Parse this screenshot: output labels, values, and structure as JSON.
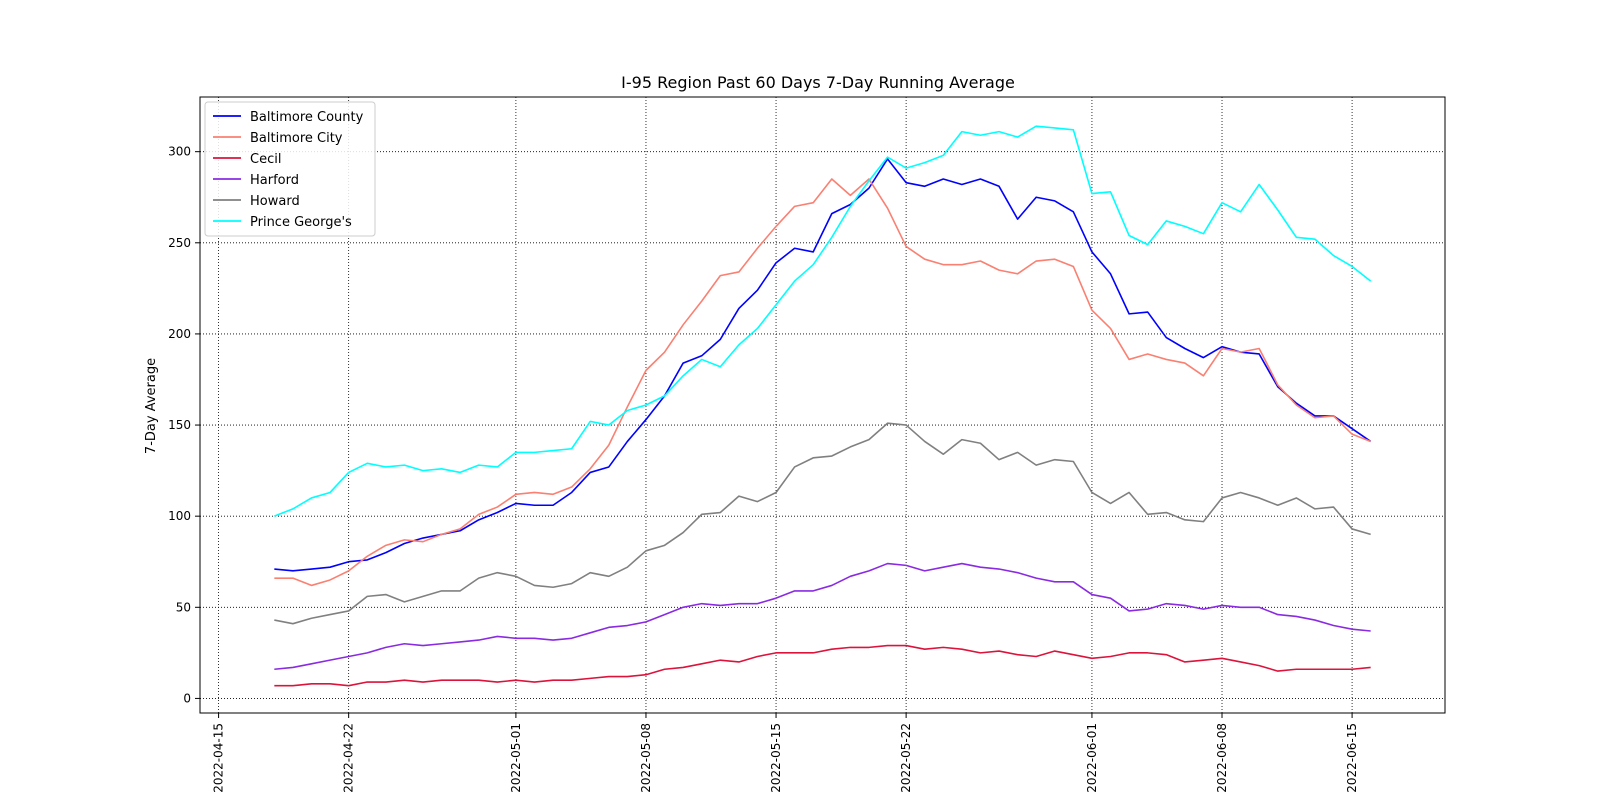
{
  "chart_data": {
    "type": "line",
    "title": "I-95 Region Past 60 Days 7-Day Running Average",
    "xlabel": "",
    "ylabel": "7-Day Average",
    "x_start": "2022-04-18",
    "x_end": "2022-06-16",
    "xlim": [
      "2022-04-14",
      "2022-06-20"
    ],
    "ylim": [
      -8,
      330
    ],
    "x_ticks": [
      "2022-04-15",
      "2022-04-22",
      "2022-05-01",
      "2022-05-08",
      "2022-05-15",
      "2022-05-22",
      "2022-06-01",
      "2022-06-08",
      "2022-06-15"
    ],
    "y_ticks": [
      0,
      50,
      100,
      150,
      200,
      250,
      300
    ],
    "grid": true,
    "legend_position": "top-left",
    "series": [
      {
        "name": "Baltimore County",
        "color": "#0000ff",
        "values": [
          71,
          70,
          71,
          72,
          75,
          76,
          80,
          85,
          88,
          90,
          92,
          98,
          102,
          107,
          106,
          106,
          113,
          124,
          127,
          141,
          153,
          166,
          184,
          188,
          197,
          214,
          224,
          239,
          247,
          245,
          266,
          271,
          280,
          296,
          283,
          281,
          285,
          282,
          285,
          281,
          263,
          275,
          273,
          267,
          245,
          233,
          211,
          212,
          198,
          192,
          187,
          193,
          190,
          189,
          171,
          162,
          155,
          155,
          148,
          141
        ]
      },
      {
        "name": "Baltimore City",
        "color": "#fa8072",
        "values": [
          66,
          66,
          62,
          65,
          70,
          78,
          84,
          87,
          86,
          90,
          93,
          101,
          105,
          112,
          113,
          112,
          116,
          126,
          139,
          160,
          180,
          190,
          205,
          218,
          232,
          234,
          247,
          259,
          270,
          272,
          285,
          276,
          285,
          269,
          248,
          241,
          238,
          238,
          240,
          235,
          233,
          240,
          241,
          237,
          213,
          203,
          186,
          189,
          186,
          184,
          177,
          192,
          190,
          192,
          172,
          161,
          154,
          155,
          145,
          141
        ]
      },
      {
        "name": "Cecil",
        "color": "#dc143c",
        "values": [
          7,
          7,
          8,
          8,
          7,
          9,
          9,
          10,
          9,
          10,
          10,
          10,
          9,
          10,
          9,
          10,
          10,
          11,
          12,
          12,
          13,
          16,
          17,
          19,
          21,
          20,
          23,
          25,
          25,
          25,
          27,
          28,
          28,
          29,
          29,
          27,
          28,
          27,
          25,
          26,
          24,
          23,
          26,
          24,
          22,
          23,
          25,
          25,
          24,
          20,
          21,
          22,
          20,
          18,
          15,
          16,
          16,
          16,
          16,
          17
        ]
      },
      {
        "name": "Harford",
        "color": "#8a2be2",
        "values": [
          16,
          17,
          19,
          21,
          23,
          25,
          28,
          30,
          29,
          30,
          31,
          32,
          34,
          33,
          33,
          32,
          33,
          36,
          39,
          40,
          42,
          46,
          50,
          52,
          51,
          52,
          52,
          55,
          59,
          59,
          62,
          67,
          70,
          74,
          73,
          70,
          72,
          74,
          72,
          71,
          69,
          66,
          64,
          64,
          57,
          55,
          48,
          49,
          52,
          51,
          49,
          51,
          50,
          50,
          46,
          45,
          43,
          40,
          38,
          37
        ]
      },
      {
        "name": "Howard",
        "color": "#808080",
        "values": [
          43,
          41,
          44,
          46,
          48,
          56,
          57,
          53,
          56,
          59,
          59,
          66,
          69,
          67,
          62,
          61,
          63,
          69,
          67,
          72,
          81,
          84,
          91,
          101,
          102,
          111,
          108,
          113,
          127,
          132,
          133,
          138,
          142,
          151,
          150,
          141,
          134,
          142,
          140,
          131,
          135,
          128,
          131,
          130,
          113,
          107,
          113,
          101,
          102,
          98,
          97,
          110,
          113,
          110,
          106,
          110,
          104,
          105,
          93,
          90
        ]
      },
      {
        "name": "Prince George's",
        "color": "#00ffff",
        "values": [
          100,
          104,
          110,
          113,
          124,
          129,
          127,
          128,
          125,
          126,
          124,
          128,
          127,
          135,
          135,
          136,
          137,
          152,
          150,
          158,
          161,
          166,
          177,
          186,
          182,
          194,
          203,
          216,
          229,
          238,
          253,
          270,
          284,
          297,
          291,
          294,
          298,
          311,
          309,
          311,
          308,
          314,
          313,
          312,
          277,
          278,
          254,
          249,
          262,
          259,
          255,
          272,
          267,
          282,
          268,
          253,
          252,
          243,
          237,
          229
        ]
      }
    ]
  }
}
